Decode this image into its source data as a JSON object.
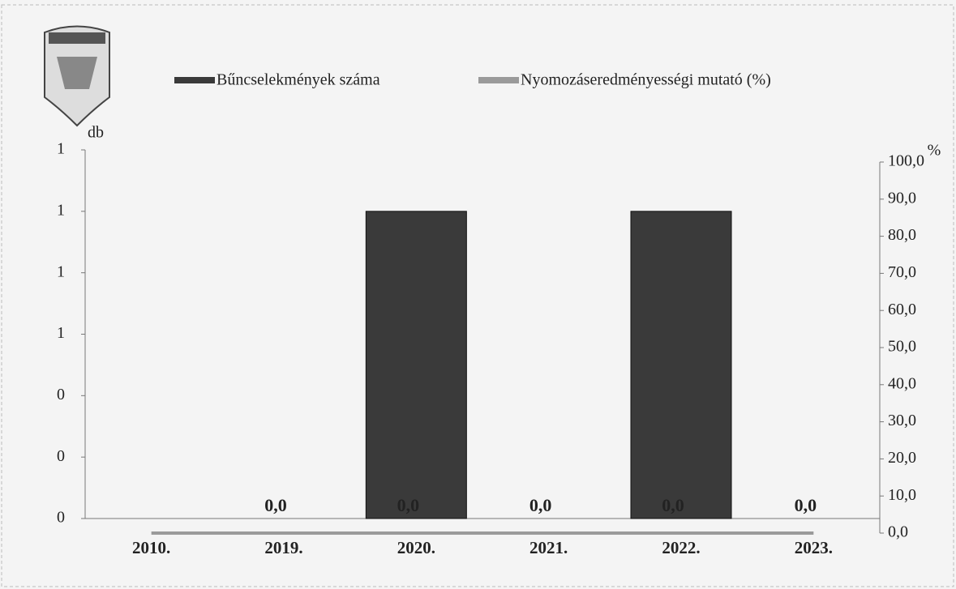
{
  "chart_data": {
    "type": "bar",
    "categories": [
      "2010.",
      "2019.",
      "2020.",
      "2021.",
      "2022.",
      "2023."
    ],
    "series": [
      {
        "name": "Bűncselekmények száma",
        "color": "#3a3a3a",
        "values": [
          0,
          0,
          1,
          0,
          1,
          0
        ]
      },
      {
        "name": "Nyomozáseredményességi mutató (%)",
        "color": "#9a9a9a",
        "axis": "y2",
        "type": "line",
        "values": [
          0,
          0,
          0,
          0,
          0,
          0
        ],
        "value_labels": [
          null,
          "0,0",
          "0,0",
          "0,0",
          "0,0",
          "0,0"
        ]
      }
    ],
    "ylabel": "db",
    "y2label": "%",
    "ylim": [
      0,
      1.2
    ],
    "yticks": [
      {
        "value": 0,
        "label": "0"
      },
      {
        "value": 0.2,
        "label": "0"
      },
      {
        "value": 0.4,
        "label": "0"
      },
      {
        "value": 0.6,
        "label": "1"
      },
      {
        "value": 0.8,
        "label": "1"
      },
      {
        "value": 1.0,
        "label": "1"
      },
      {
        "value": 1.2,
        "label": "1"
      }
    ],
    "y2lim": [
      0,
      100
    ],
    "y2ticks": [
      {
        "value": 0,
        "label": "0,0"
      },
      {
        "value": 10,
        "label": "10,0"
      },
      {
        "value": 20,
        "label": "20,0"
      },
      {
        "value": 30,
        "label": "30,0"
      },
      {
        "value": 40,
        "label": "40,0"
      },
      {
        "value": 50,
        "label": "50,0"
      },
      {
        "value": 60,
        "label": "60,0"
      },
      {
        "value": 70,
        "label": "70,0"
      },
      {
        "value": 80,
        "label": "80,0"
      },
      {
        "value": 90,
        "label": "90,0"
      },
      {
        "value": 100,
        "label": "100,0"
      }
    ],
    "legend": "top"
  }
}
